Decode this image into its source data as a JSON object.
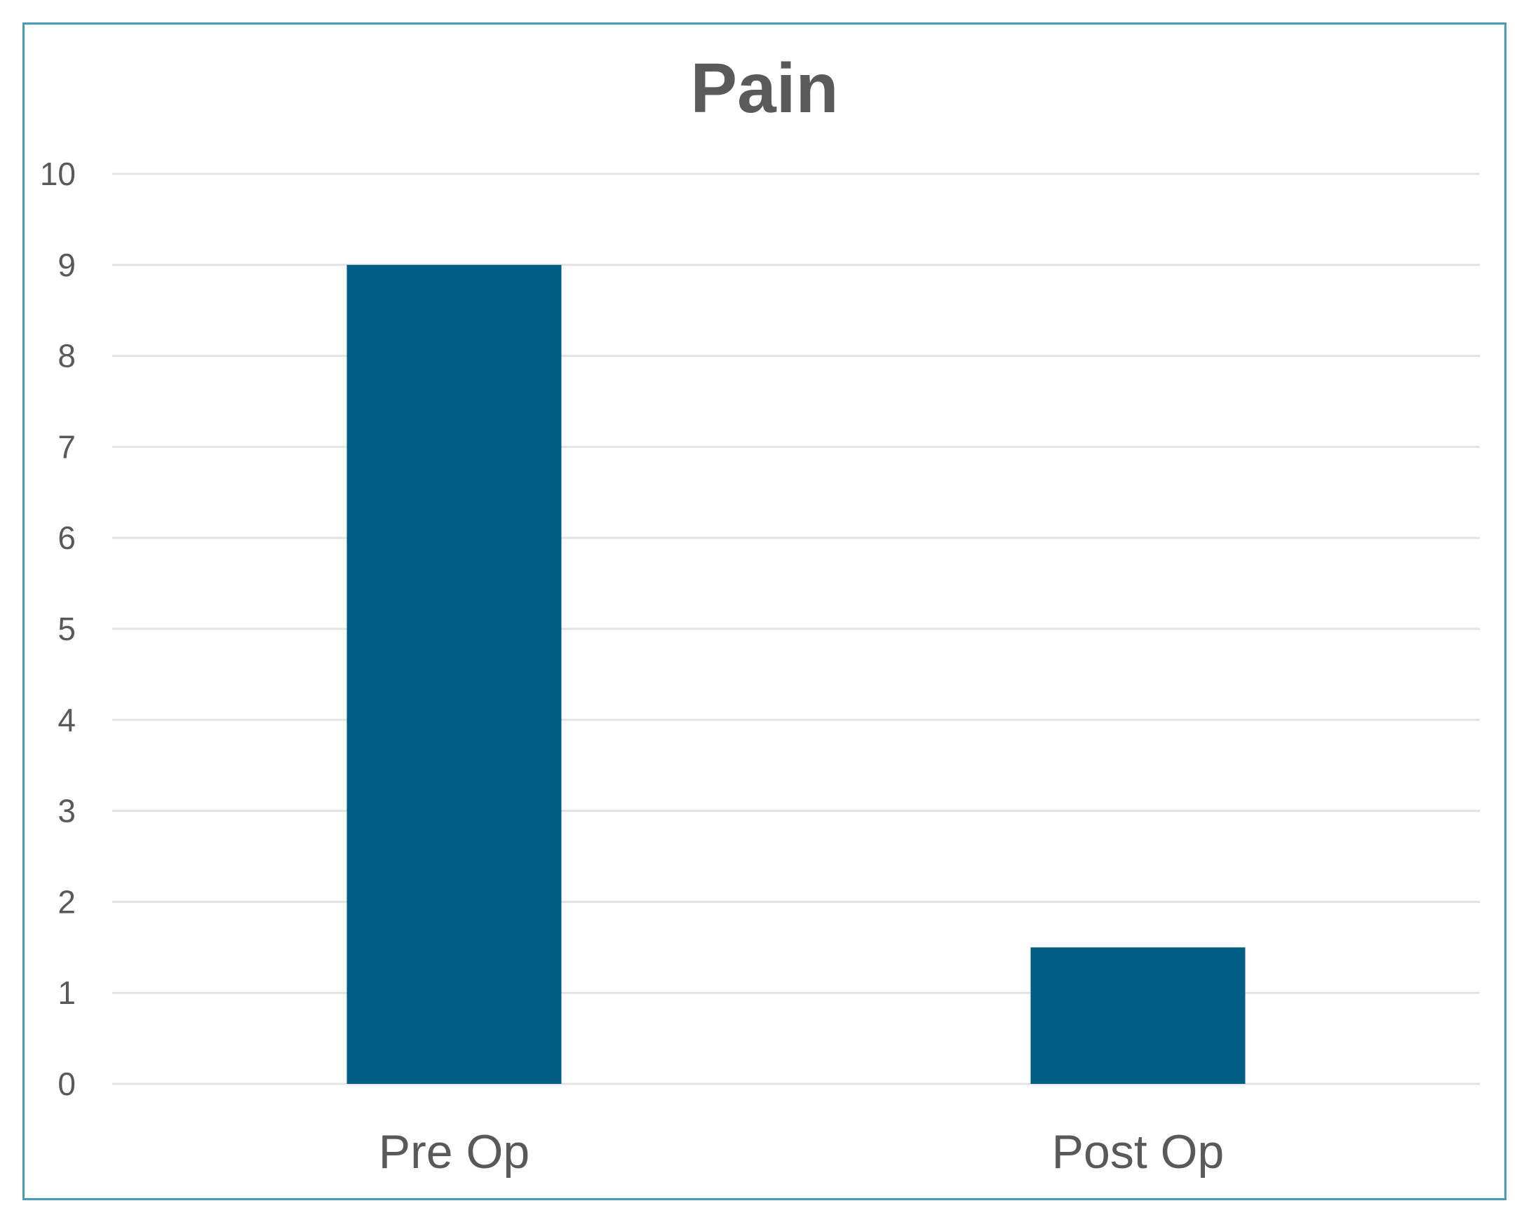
{
  "chart_data": {
    "type": "bar",
    "title": "Pain",
    "categories": [
      "Pre Op",
      "Post Op"
    ],
    "values": [
      9,
      1.5
    ],
    "xlabel": "",
    "ylabel": "",
    "ylim": [
      0,
      10
    ],
    "yticks": [
      "0",
      "1",
      "2",
      "3",
      "4",
      "5",
      "6",
      "7",
      "8",
      "9",
      "10"
    ],
    "grid": true,
    "legend": "none",
    "bar_color": "#005f83",
    "frame_color": "#4a9bb5"
  }
}
